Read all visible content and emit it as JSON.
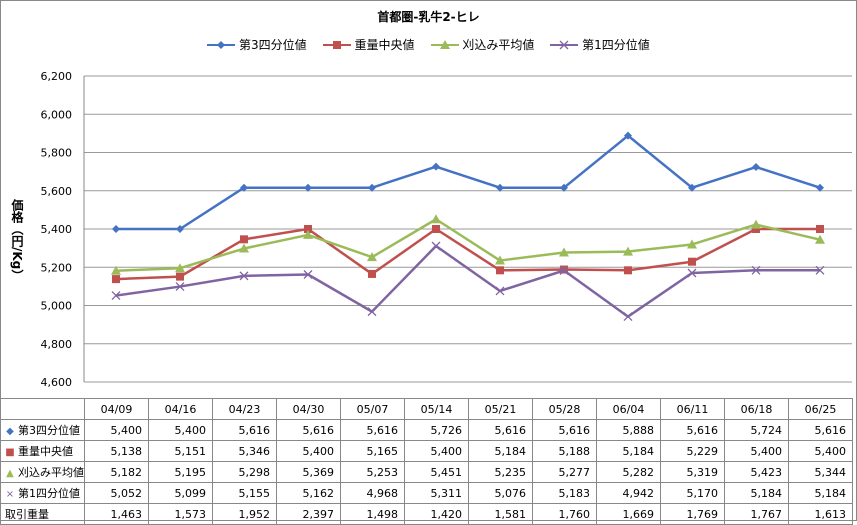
{
  "chart_data": {
    "type": "line",
    "title": "首都圏-乳牛2-ヒレ",
    "ylabel": "価格（円/Kg）",
    "xlabel": "",
    "ylim": [
      4600,
      6200
    ],
    "yticks": [
      "4,600",
      "4,800",
      "5,000",
      "5,200",
      "5,400",
      "5,600",
      "5,800",
      "6,000",
      "6,200"
    ],
    "ytick_values": [
      4600,
      4800,
      5000,
      5200,
      5400,
      5600,
      5800,
      6000,
      6200
    ],
    "grid": true,
    "legend_position": "top",
    "categories": [
      "04/09",
      "04/16",
      "04/23",
      "04/30",
      "05/07",
      "05/14",
      "05/21",
      "05/28",
      "06/04",
      "06/11",
      "06/18",
      "06/25"
    ],
    "series": [
      {
        "name": "第3四分位値",
        "color": "#4472C4",
        "marker": "diamond",
        "values": [
          5400,
          5400,
          5616,
          5616,
          5616,
          5726,
          5616,
          5616,
          5888,
          5616,
          5724,
          5616
        ],
        "labels": [
          "5,400",
          "5,400",
          "5,616",
          "5,616",
          "5,616",
          "5,726",
          "5,616",
          "5,616",
          "5,888",
          "5,616",
          "5,724",
          "5,616"
        ]
      },
      {
        "name": "重量中央値",
        "color": "#C0504D",
        "marker": "square",
        "values": [
          5138,
          5151,
          5346,
          5400,
          5165,
          5400,
          5184,
          5188,
          5184,
          5229,
          5400,
          5400
        ],
        "labels": [
          "5,138",
          "5,151",
          "5,346",
          "5,400",
          "5,165",
          "5,400",
          "5,184",
          "5,188",
          "5,184",
          "5,229",
          "5,400",
          "5,400"
        ]
      },
      {
        "name": "刈込み平均値",
        "color": "#9BBB59",
        "marker": "triangle",
        "values": [
          5182,
          5195,
          5298,
          5369,
          5253,
          5451,
          5235,
          5277,
          5282,
          5319,
          5423,
          5344
        ],
        "labels": [
          "5,182",
          "5,195",
          "5,298",
          "5,369",
          "5,253",
          "5,451",
          "5,235",
          "5,277",
          "5,282",
          "5,319",
          "5,423",
          "5,344"
        ]
      },
      {
        "name": "第1四分位値",
        "color": "#8064A2",
        "marker": "x",
        "values": [
          5052,
          5099,
          5155,
          5162,
          4968,
          5311,
          5076,
          5183,
          4942,
          5170,
          5184,
          5184
        ],
        "labels": [
          "5,052",
          "5,099",
          "5,155",
          "5,162",
          "4,968",
          "5,311",
          "5,076",
          "5,183",
          "4,942",
          "5,170",
          "5,184",
          "5,184"
        ]
      }
    ],
    "extra_rows": [
      {
        "name": "取引重量",
        "labels": [
          "1,463",
          "1,573",
          "1,952",
          "2,397",
          "1,498",
          "1,420",
          "1,581",
          "1,760",
          "1,669",
          "1,769",
          "1,767",
          "1,613"
        ]
      }
    ]
  }
}
